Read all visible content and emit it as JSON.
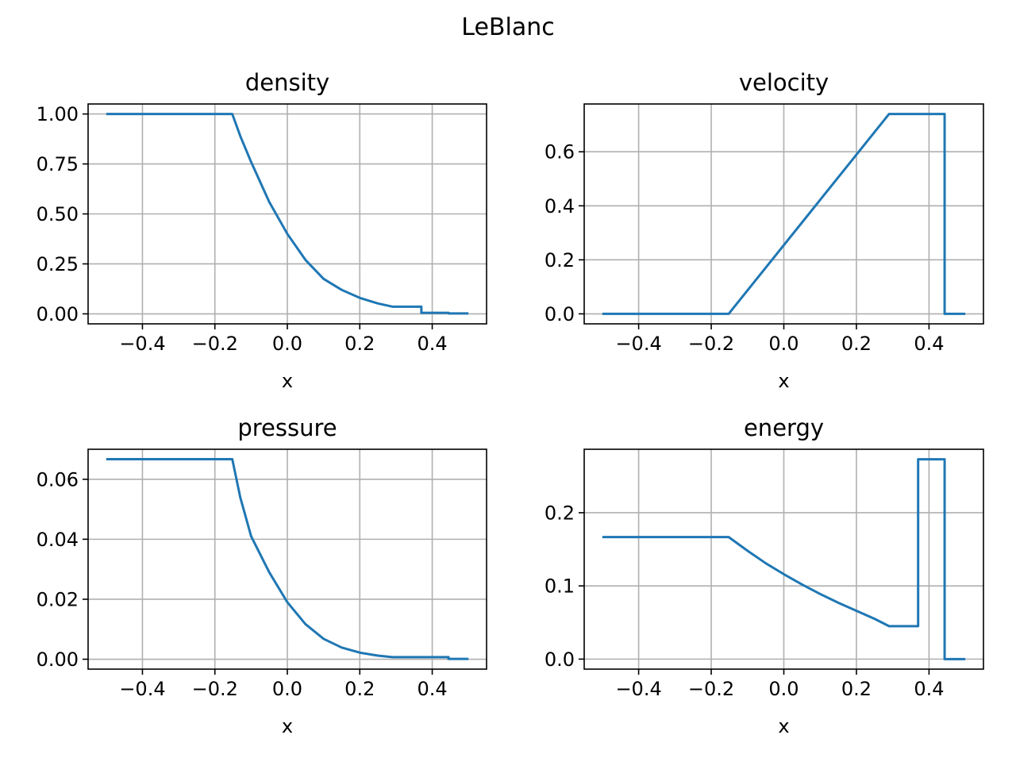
{
  "figure": {
    "suptitle": "LeBlanc"
  },
  "chart_data": [
    {
      "type": "line",
      "title": "density",
      "xlabel": "x",
      "ylabel": "",
      "xlim": [
        -0.55,
        0.55
      ],
      "ylim": [
        -0.05,
        1.05
      ],
      "grid": true,
      "xticks": [
        -0.4,
        -0.2,
        0.0,
        0.2,
        0.4
      ],
      "xtick_labels": [
        "−0.4",
        "−0.2",
        "0.0",
        "0.2",
        "0.4"
      ],
      "yticks": [
        0,
        0.25,
        0.5,
        0.75,
        1.0
      ],
      "ytick_labels": [
        "0.00",
        "0.25",
        "0.50",
        "0.75",
        "1.00"
      ],
      "series": [
        {
          "x": [
            -0.5,
            -0.152,
            -0.13,
            -0.1,
            -0.05,
            0.0,
            0.05,
            0.1,
            0.15,
            0.2,
            0.25,
            0.29,
            0.29,
            0.37,
            0.37,
            0.445,
            0.445,
            0.5
          ],
          "y": [
            1.0,
            1.0,
            0.89,
            0.76,
            0.56,
            0.4,
            0.27,
            0.175,
            0.12,
            0.08,
            0.052,
            0.036,
            0.036,
            0.036,
            0.005,
            0.005,
            0.002,
            0.002
          ]
        }
      ]
    },
    {
      "type": "line",
      "title": "velocity",
      "xlabel": "x",
      "ylabel": "",
      "xlim": [
        -0.55,
        0.55
      ],
      "ylim": [
        -0.037,
        0.777
      ],
      "grid": true,
      "xticks": [
        -0.4,
        -0.2,
        0.0,
        0.2,
        0.4
      ],
      "xtick_labels": [
        "−0.4",
        "−0.2",
        "0.0",
        "0.2",
        "0.4"
      ],
      "yticks": [
        0,
        0.2,
        0.4,
        0.6
      ],
      "ytick_labels": [
        "0.0",
        "0.2",
        "0.4",
        "0.6"
      ],
      "series": [
        {
          "x": [
            -0.5,
            -0.152,
            0.29,
            0.443,
            0.443,
            0.5
          ],
          "y": [
            0.0,
            0.0,
            0.74,
            0.74,
            0.0,
            0.0
          ]
        }
      ]
    },
    {
      "type": "line",
      "title": "pressure",
      "xlabel": "x",
      "ylabel": "",
      "xlim": [
        -0.55,
        0.55
      ],
      "ylim": [
        -0.0033,
        0.07
      ],
      "grid": true,
      "xticks": [
        -0.4,
        -0.2,
        0.0,
        0.2,
        0.4
      ],
      "xtick_labels": [
        "−0.4",
        "−0.2",
        "0.0",
        "0.2",
        "0.4"
      ],
      "yticks": [
        0,
        0.02,
        0.04,
        0.06
      ],
      "ytick_labels": [
        "0.00",
        "0.02",
        "0.04",
        "0.06"
      ],
      "series": [
        {
          "x": [
            -0.5,
            -0.152,
            -0.13,
            -0.1,
            -0.05,
            0.0,
            0.05,
            0.1,
            0.15,
            0.2,
            0.25,
            0.29,
            0.29,
            0.445,
            0.445,
            0.5
          ],
          "y": [
            0.0667,
            0.0667,
            0.054,
            0.041,
            0.029,
            0.019,
            0.0117,
            0.0068,
            0.0039,
            0.0022,
            0.0012,
            0.0007,
            0.0007,
            0.0007,
            0.0001,
            0.0001
          ]
        }
      ]
    },
    {
      "type": "line",
      "title": "energy",
      "xlabel": "x",
      "ylabel": "",
      "xlim": [
        -0.55,
        0.55
      ],
      "ylim": [
        -0.0137,
        0.2867
      ],
      "grid": true,
      "xticks": [
        -0.4,
        -0.2,
        0.0,
        0.2,
        0.4
      ],
      "xtick_labels": [
        "−0.4",
        "−0.2",
        "0.0",
        "0.2",
        "0.4"
      ],
      "yticks": [
        0,
        0.1,
        0.2
      ],
      "ytick_labels": [
        "0.0",
        "0.1",
        "0.2"
      ],
      "series": [
        {
          "x": [
            -0.5,
            -0.152,
            -0.1,
            -0.05,
            0.0,
            0.05,
            0.1,
            0.15,
            0.2,
            0.25,
            0.29,
            0.37,
            0.37,
            0.443,
            0.443,
            0.5
          ],
          "y": [
            0.1667,
            0.1667,
            0.148,
            0.131,
            0.116,
            0.102,
            0.089,
            0.077,
            0.066,
            0.055,
            0.045,
            0.045,
            0.273,
            0.273,
            0.0,
            0.0
          ]
        }
      ]
    }
  ]
}
